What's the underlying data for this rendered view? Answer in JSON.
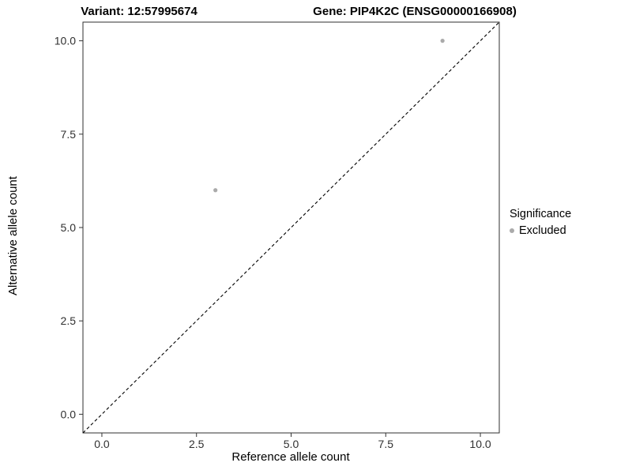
{
  "titles": {
    "variant": "Variant: 12:57995674",
    "gene": "Gene: PIP4K2C (ENSG00000166908)"
  },
  "axes": {
    "x_label": "Reference allele count",
    "y_label": "Alternative allele count"
  },
  "legend": {
    "title": "Significance",
    "items": [
      {
        "label": "Excluded",
        "color": "#aaaaaa"
      }
    ]
  },
  "chart_data": {
    "type": "scatter",
    "title": "Variant: 12:57995674 | Gene: PIP4K2C (ENSG00000166908)",
    "xlabel": "Reference allele count",
    "ylabel": "Alternative allele count",
    "xlim": [
      -0.5,
      10.5
    ],
    "ylim": [
      -0.5,
      10.5
    ],
    "x_ticks": [
      0.0,
      2.5,
      5.0,
      7.5,
      10.0
    ],
    "x_tick_labels": [
      "0.0",
      "2.5",
      "5.0",
      "7.5",
      "10.0"
    ],
    "y_ticks": [
      0.0,
      2.5,
      5.0,
      7.5,
      10.0
    ],
    "y_tick_labels": [
      "0.0",
      "2.5",
      "5.0",
      "7.5",
      "10.0"
    ],
    "grid": false,
    "legend_position": "right",
    "panel_border_color": "#2f2f2f",
    "reference_line": {
      "type": "identity-diagonal",
      "style": "dashed",
      "color": "#000000",
      "from": [
        -0.5,
        -0.5
      ],
      "to": [
        10.5,
        10.5
      ]
    },
    "series": [
      {
        "name": "Excluded",
        "color": "#aaaaaa",
        "points": [
          {
            "x": 3,
            "y": 6
          },
          {
            "x": 9,
            "y": 10
          }
        ]
      }
    ]
  }
}
